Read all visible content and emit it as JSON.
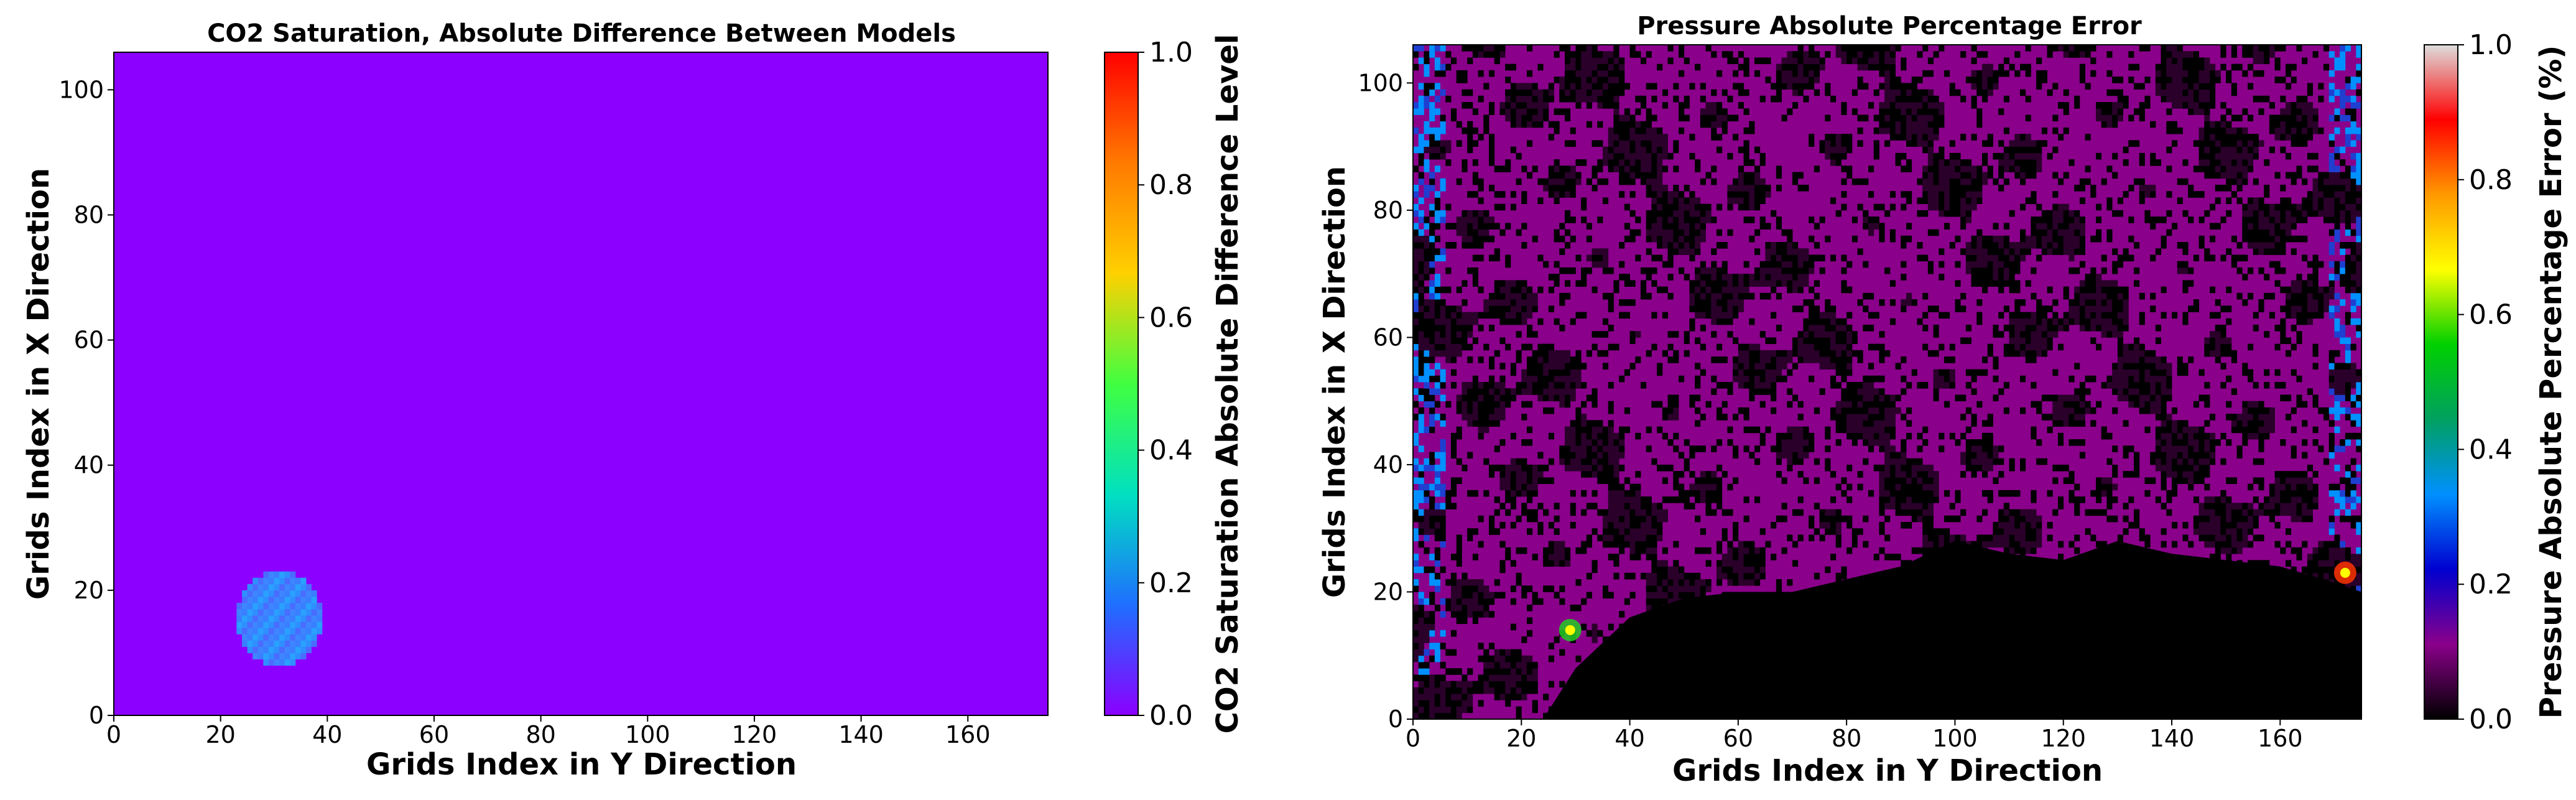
{
  "chart_data": [
    {
      "type": "heatmap",
      "title": "CO2 Saturation, Absolute Difference Between Models",
      "xlabel": "Grids Index in Y Direction",
      "ylabel": "Grids Index in X Direction",
      "xlim": [
        0,
        175
      ],
      "ylim": [
        0,
        106
      ],
      "xticks": [
        "0",
        "20",
        "40",
        "60",
        "80",
        "100",
        "120",
        "140",
        "160"
      ],
      "yticks": [
        "0",
        "20",
        "40",
        "60",
        "80",
        "100"
      ],
      "colorbar": {
        "label": "CO2 Saturation Absolute Difference Level",
        "range": [
          0.0,
          1.0
        ],
        "ticks": [
          "0.0",
          "0.2",
          "0.4",
          "0.6",
          "0.8",
          "1.0"
        ],
        "colormap": [
          "#8b00ff",
          "#1f6fff",
          "#00e0c0",
          "#40ff40",
          "#ffd000",
          "#ff7a00",
          "#ff0000"
        ]
      },
      "background_value": 0.0,
      "background_color": "#8b00ff",
      "plume_region": {
        "x_range": [
          23,
          39
        ],
        "y_range": [
          8,
          23
        ],
        "value_approx": 0.18,
        "color": "#2f8fff"
      }
    },
    {
      "type": "heatmap",
      "title": "Pressure Absolute Percentage Error",
      "xlabel": "Grids Index in Y Direction",
      "ylabel": "Grids Index in X Direction",
      "xlim": [
        0,
        175
      ],
      "ylim": [
        0,
        106
      ],
      "xticks": [
        "0",
        "20",
        "40",
        "60",
        "80",
        "100",
        "120",
        "140",
        "160"
      ],
      "yticks": [
        "0",
        "20",
        "40",
        "60",
        "80",
        "100"
      ],
      "colorbar": {
        "label": "Pressure Absolute Percentage Error (%)",
        "range": [
          0.0,
          1.0
        ],
        "ticks": [
          "0.0",
          "0.2",
          "0.4",
          "0.6",
          "0.8",
          "1.0"
        ],
        "colormap": [
          "#000000",
          "#8a008a",
          "#0000d0",
          "#0090ff",
          "#00a060",
          "#00d000",
          "#ffff00",
          "#ff9900",
          "#ff0000",
          "#dddddd"
        ]
      },
      "inactive_region_color": "#000000",
      "inactive_boundary": {
        "x": [
          24,
          30,
          40,
          50,
          60,
          70,
          80,
          90,
          100,
          110,
          120,
          130,
          140,
          150,
          160,
          168,
          175
        ],
        "y": [
          0,
          8,
          16,
          19,
          20,
          20,
          22,
          24,
          28,
          26,
          25,
          28,
          26,
          25,
          24,
          22,
          20
        ]
      },
      "hotspots": [
        {
          "x": 29,
          "y": 14,
          "value_approx": 0.5
        },
        {
          "x": 172,
          "y": 23,
          "value_approx": 0.9
        }
      ]
    }
  ]
}
